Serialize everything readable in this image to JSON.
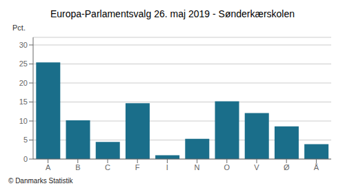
{
  "chart_data": {
    "type": "bar",
    "title": "Europa-Parlamentsvalg 26. maj 2019 - Sønderkærskolen",
    "ylabel": "Pct.",
    "annotations": [
      "© Danmarks Statistik"
    ],
    "categories": [
      "A",
      "B",
      "C",
      "F",
      "I",
      "N",
      "O",
      "V",
      "Ø",
      "Å"
    ],
    "values": [
      25.4,
      10.2,
      4.5,
      14.7,
      1.0,
      5.3,
      15.2,
      12.1,
      8.6,
      3.9
    ],
    "color": "#1a6e8a",
    "ylim": [
      0,
      32
    ],
    "yticks": [
      0,
      5,
      10,
      15,
      20,
      25,
      30
    ],
    "grid": true
  }
}
